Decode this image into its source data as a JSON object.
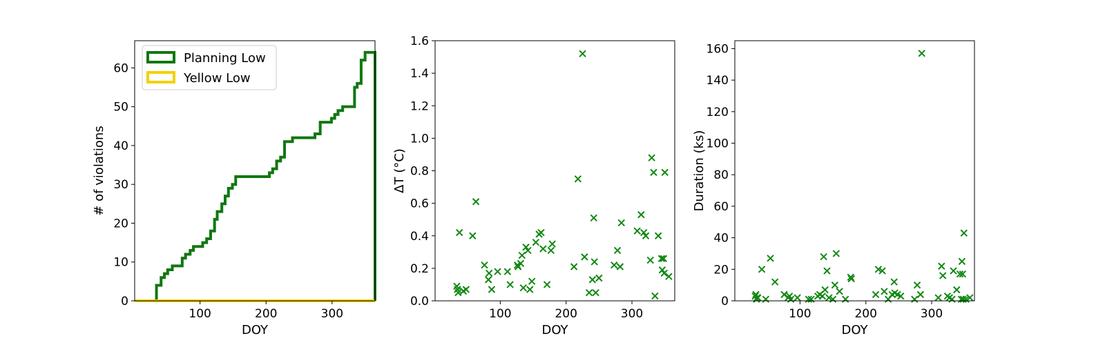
{
  "colors": {
    "planning": "#117711",
    "yellow": "#f5d000",
    "marker": "#118811",
    "axis": "#000000"
  },
  "chart_data": [
    {
      "type": "line",
      "drawstyle": "steps",
      "xlabel": "DOY",
      "ylabel": "# of violations",
      "xlim": [
        1,
        365
      ],
      "ylim": [
        0,
        67
      ],
      "xticks": [
        100,
        200,
        300
      ],
      "yticks": [
        0,
        10,
        20,
        30,
        40,
        50,
        60
      ],
      "legend": {
        "placement": "top-left"
      },
      "grid": false,
      "series": [
        {
          "name": "Planning Low",
          "color": "#117711",
          "x": [
            29,
            34,
            41,
            46,
            51,
            58,
            73,
            78,
            85,
            90,
            104,
            110,
            116,
            122,
            126,
            133,
            138,
            143,
            149,
            154,
            160,
            168,
            174,
            205,
            210,
            216,
            222,
            228,
            240,
            252,
            274,
            282,
            293,
            299,
            304,
            309,
            316,
            334,
            338,
            344,
            350,
            365
          ],
          "y": [
            0,
            4,
            6,
            7,
            8,
            9,
            11,
            12,
            13,
            14,
            15,
            16,
            18,
            21,
            23,
            25,
            27,
            29,
            30,
            32,
            32,
            32,
            32,
            33,
            34,
            36,
            37,
            41,
            42,
            42,
            43,
            46,
            46,
            47,
            48,
            49,
            50,
            55,
            56,
            62,
            64,
            0
          ]
        },
        {
          "name": "Yellow Low",
          "color": "#f5d000",
          "x": [
            1,
            365
          ],
          "y": [
            0,
            0
          ]
        }
      ]
    },
    {
      "type": "scatter",
      "marker": "x",
      "xlabel": "DOY",
      "ylabel": "ΔT (°C)",
      "xlim": [
        1,
        365
      ],
      "ylim": [
        0,
        1.6
      ],
      "xticks": [
        100,
        200,
        300
      ],
      "yticks": [
        0.0,
        0.2,
        0.4,
        0.6,
        0.8,
        1.0,
        1.2,
        1.4,
        1.6
      ],
      "grid": false,
      "x": [
        34,
        35,
        36,
        38,
        44,
        48,
        58,
        63,
        76,
        82,
        83,
        87,
        96,
        111,
        115,
        126,
        127,
        131,
        133,
        135,
        139,
        142,
        145,
        148,
        154,
        159,
        162,
        165,
        171,
        177,
        179,
        212,
        218,
        225,
        228,
        235,
        240,
        242,
        243,
        245,
        250,
        273,
        278,
        282,
        284,
        308,
        314,
        318,
        321,
        328,
        330,
        333,
        335,
        340,
        345,
        346,
        348,
        349,
        350,
        356
      ],
      "y": [
        0.09,
        0.07,
        0.05,
        0.42,
        0.06,
        0.07,
        0.4,
        0.61,
        0.22,
        0.13,
        0.17,
        0.07,
        0.18,
        0.18,
        0.1,
        0.22,
        0.21,
        0.23,
        0.28,
        0.08,
        0.33,
        0.31,
        0.07,
        0.12,
        0.36,
        0.41,
        0.42,
        0.32,
        0.1,
        0.31,
        0.35,
        0.21,
        0.75,
        1.52,
        0.27,
        0.05,
        0.13,
        0.51,
        0.24,
        0.05,
        0.14,
        0.22,
        0.31,
        0.21,
        0.48,
        0.43,
        0.53,
        0.42,
        0.4,
        0.25,
        0.88,
        0.79,
        0.03,
        0.4,
        0.26,
        0.19,
        0.26,
        0.17,
        0.79,
        0.15
      ]
    },
    {
      "type": "scatter",
      "marker": "x",
      "xlabel": "DOY",
      "ylabel": "Duration (ks)",
      "xlim": [
        1,
        365
      ],
      "ylim": [
        0,
        165
      ],
      "xticks": [
        100,
        200,
        300
      ],
      "yticks": [
        0,
        20,
        40,
        60,
        80,
        100,
        120,
        140,
        160
      ],
      "grid": false,
      "x": [
        32,
        33,
        34,
        35,
        36,
        42,
        48,
        55,
        62,
        76,
        82,
        84,
        86,
        96,
        113,
        117,
        127,
        130,
        134,
        136,
        138,
        141,
        144,
        150,
        153,
        155,
        160,
        169,
        177,
        178,
        215,
        219,
        225,
        228,
        234,
        240,
        243,
        244,
        248,
        253,
        274,
        278,
        283,
        285,
        310,
        315,
        317,
        324,
        327,
        331,
        333,
        338,
        343,
        345,
        346,
        347,
        348,
        349,
        352,
        358
      ],
      "y": [
        3,
        4,
        1,
        2,
        2,
        20,
        1,
        27,
        12,
        4,
        2,
        3,
        1,
        2,
        1,
        1,
        3,
        4,
        3,
        28,
        7,
        19,
        2,
        1,
        10,
        30,
        6,
        1,
        15,
        14,
        4,
        20,
        19,
        6,
        1,
        4,
        12,
        5,
        4,
        3,
        1,
        10,
        4,
        157,
        2,
        22,
        16,
        3,
        2,
        1,
        19,
        7,
        17,
        1,
        25,
        17,
        1,
        43,
        1,
        2
      ]
    }
  ],
  "legend_labels": [
    "Planning Low",
    "Yellow Low"
  ]
}
